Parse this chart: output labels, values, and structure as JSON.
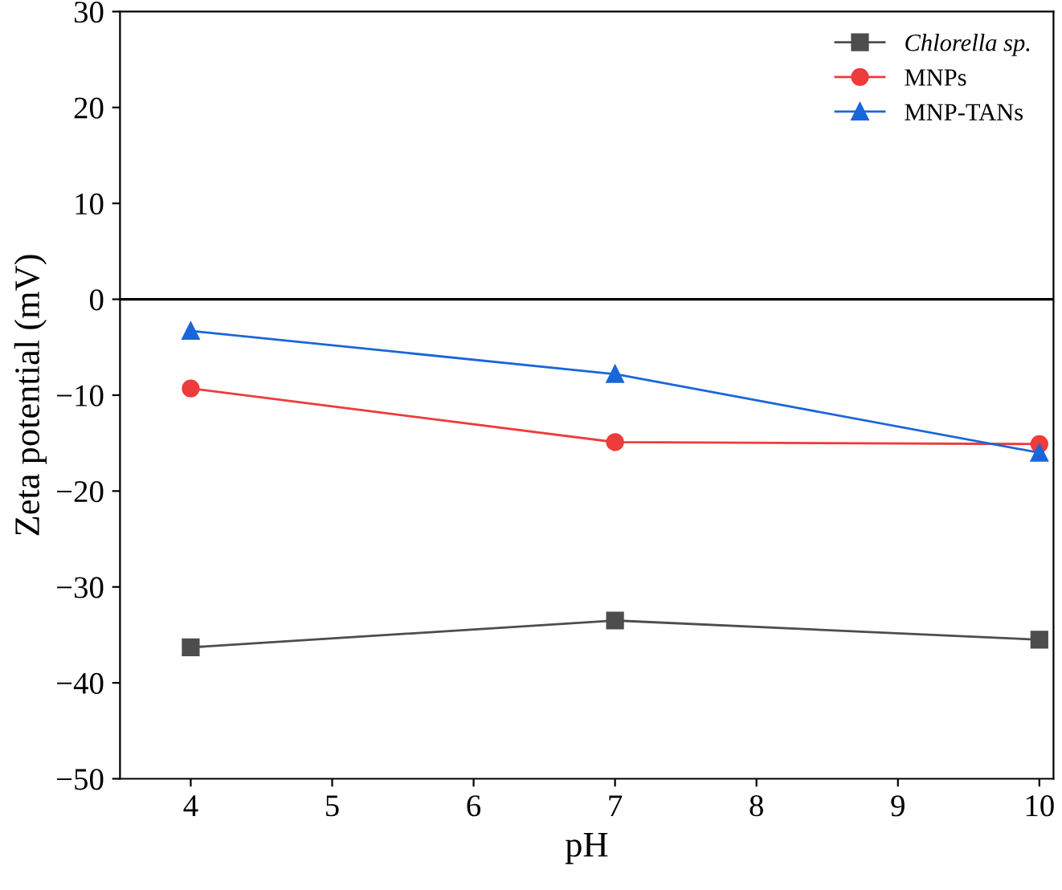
{
  "chart_data": {
    "type": "line",
    "xlabel": "pH",
    "ylabel": "Zeta potential (mV)",
    "x": [
      4,
      7,
      10
    ],
    "series": [
      {
        "name": "Chlorella sp.",
        "color": "#4d4d4d",
        "marker": "square",
        "values": [
          -36.3,
          -33.5,
          -35.5
        ]
      },
      {
        "name": "MNPs",
        "color": "#ee3b3b",
        "marker": "circle",
        "values": [
          -9.3,
          -14.9,
          -15.1
        ]
      },
      {
        "name": "MNP-TANs",
        "color": "#1a66d9",
        "marker": "triangle",
        "values": [
          -3.3,
          -7.8,
          -16
        ]
      }
    ],
    "xlim": [
      3.5,
      10.1
    ],
    "xticks": [
      4,
      5,
      6,
      7,
      8,
      9,
      10
    ],
    "ylim": [
      -50,
      30
    ],
    "yticks": [
      -50,
      -40,
      -30,
      -20,
      -10,
      0,
      10,
      20,
      30
    ],
    "ref_lines": [
      {
        "axis": "y",
        "value": 0,
        "color": "#000000"
      }
    ],
    "grid": false,
    "legend": "top right",
    "line_style": "solid"
  }
}
